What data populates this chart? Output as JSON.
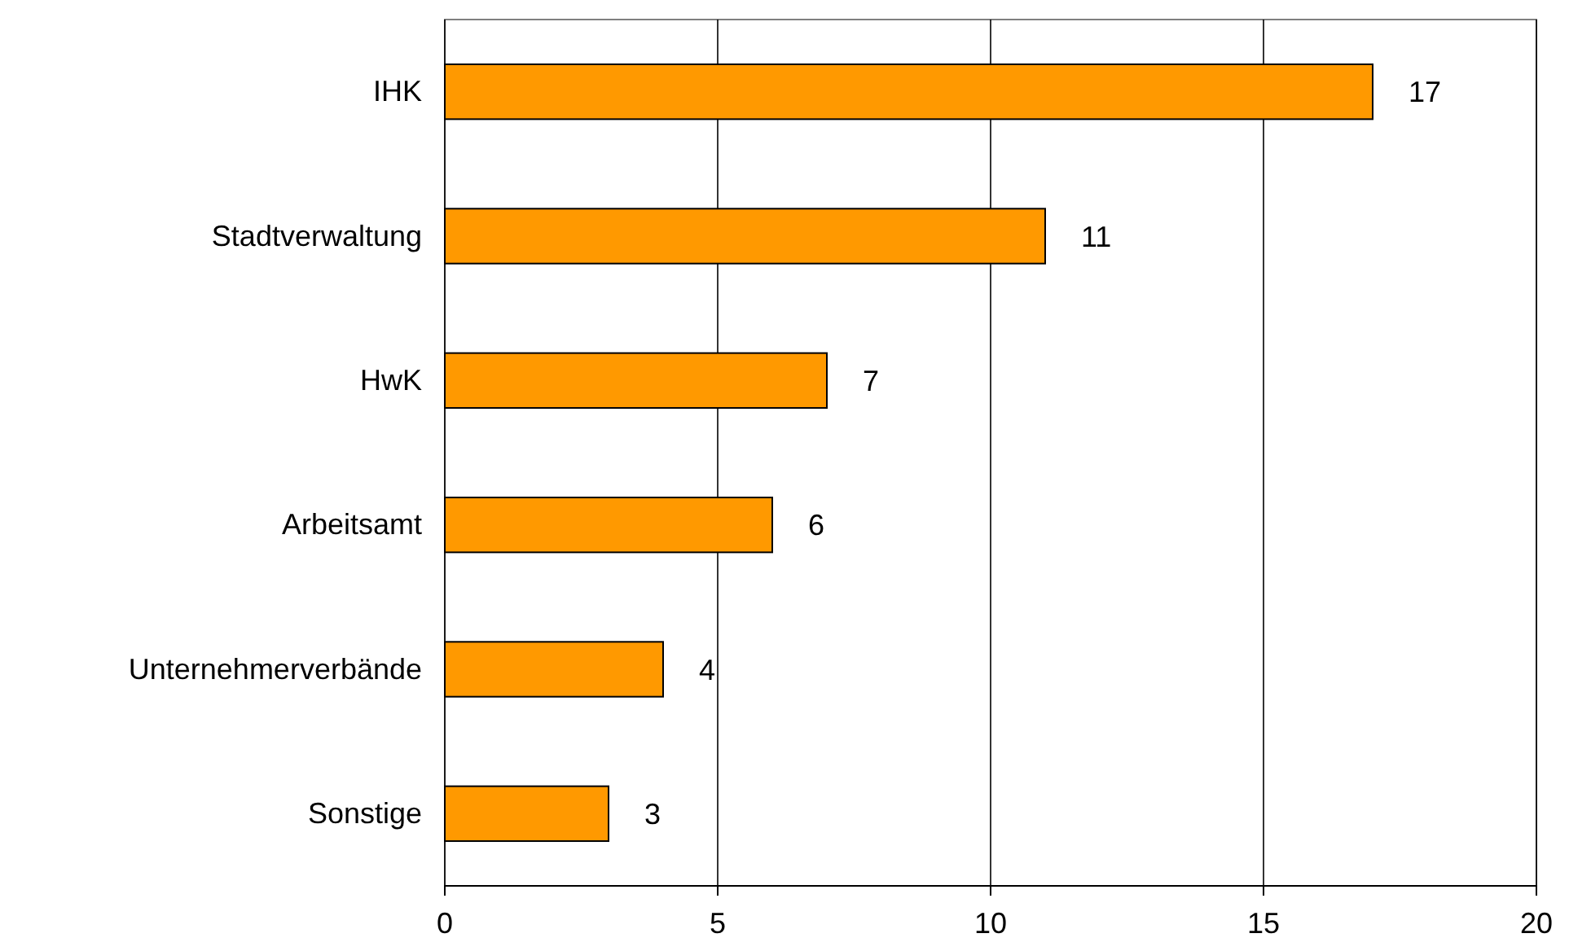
{
  "chart_data": {
    "type": "bar",
    "orientation": "horizontal",
    "categories": [
      "IHK",
      "Stadtverwaltung",
      "HwK",
      "Arbeitsamt",
      "Unternehmerverbände",
      "Sonstige"
    ],
    "values": [
      17,
      11,
      7,
      6,
      4,
      3
    ],
    "color": "#ff9900",
    "xlim": [
      0,
      20
    ],
    "xticks": [
      0,
      5,
      10,
      15,
      20
    ],
    "grid": "x",
    "data_labels": true
  }
}
